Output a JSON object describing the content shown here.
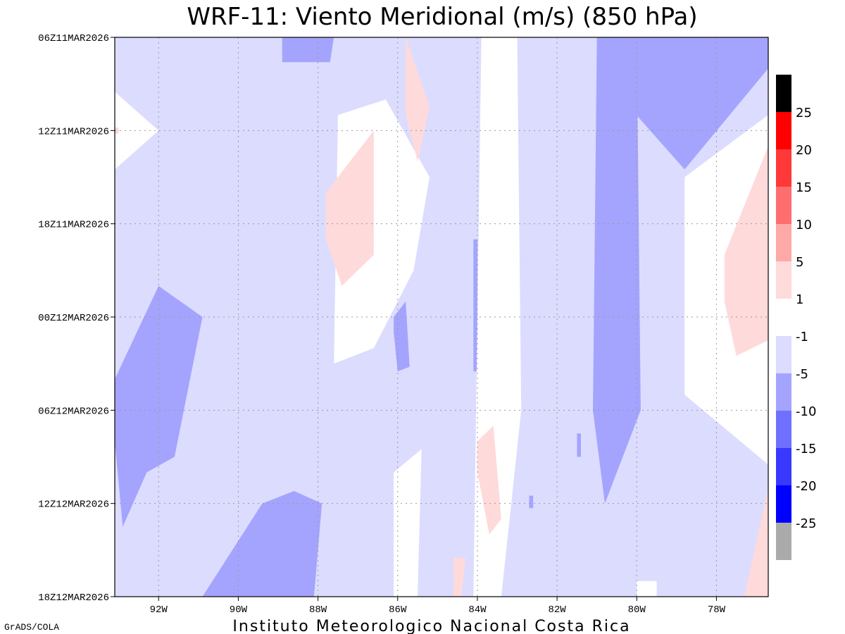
{
  "chart_data": {
    "type": "heatmap",
    "title": "WRF-11: Viento Meridional (m/s) (850 hPa)",
    "xlabel": "",
    "ylabel": "",
    "x_ticks": [
      "92W",
      "90W",
      "88W",
      "86W",
      "84W",
      "82W",
      "80W",
      "78W"
    ],
    "x_tick_values": [
      -92,
      -90,
      -88,
      -86,
      -84,
      -82,
      -80,
      -78
    ],
    "xlim": [
      -93.1,
      -76.7
    ],
    "y_ticks": [
      "06Z11MAR2026",
      "12Z11MAR2026",
      "18Z11MAR2026",
      "00Z12MAR2026",
      "06Z12MAR2026",
      "12Z12MAR2026",
      "18Z12MAR2026"
    ],
    "y_tick_hours": [
      0,
      6,
      12,
      18,
      24,
      30,
      36
    ],
    "grid": true,
    "background_class": "-5 to -1",
    "colorbar": {
      "position": "right",
      "upper_labels": [
        "25",
        "20",
        "15",
        "10",
        "5",
        "1"
      ],
      "lower_labels": [
        "-1",
        "-5",
        "-10",
        "-15",
        "-20",
        "-25"
      ],
      "upper_colors": [
        "#000000",
        "#ff0000",
        "#ff3838",
        "#ff6e6e",
        "#ffa8a8",
        "#ffdada"
      ],
      "lower_colors": [
        "#dcdcff",
        "#a4a4ff",
        "#7070ff",
        "#3838ff",
        "#0000ff",
        "#aaaaaa"
      ]
    },
    "class_colors": {
      "pos_1_5": "#ffdada",
      "near_zero": "#ffffff",
      "neg_1_5": "#dcdcff",
      "neg_5_10": "#a4a4ff",
      "neg_10_15": "#7070ff"
    },
    "regions": [
      {
        "level": "neg_5_10",
        "lon": [
          -88.9,
          -87.6,
          -87.7,
          -88.9
        ],
        "hour": [
          0,
          0,
          1.6,
          1.6
        ]
      },
      {
        "level": "neg_5_10",
        "lon": [
          -80.7,
          -76.7,
          -76.7,
          -78.8,
          -80.7
        ],
        "hour": [
          0,
          0,
          2,
          8.5,
          3
        ]
      },
      {
        "level": "neg_5_10",
        "lon": [
          -81.0,
          -80.0,
          -79.9,
          -80.8,
          -81.1
        ],
        "hour": [
          0,
          0,
          24,
          30,
          24
        ]
      },
      {
        "level": "neg_5_10",
        "lon": [
          -93.1,
          -92.0,
          -90.9,
          -91.6,
          -92.3,
          -92.9,
          -93.1
        ],
        "hour": [
          22,
          16,
          18,
          27,
          28,
          31.5,
          26
        ]
      },
      {
        "level": "neg_5_10",
        "lon": [
          -88.1,
          -90.9,
          -89.4,
          -88.6,
          -87.9
        ],
        "hour": [
          36,
          36,
          30,
          29.2,
          30
        ]
      },
      {
        "level": "neg_5_10",
        "lon": [
          -86.1,
          -85.8,
          -85.7,
          -86.0,
          -86.1
        ],
        "hour": [
          18,
          17,
          21.2,
          21.5,
          19
        ]
      },
      {
        "level": "neg_5_10",
        "lon": [
          -84.1,
          -84.0,
          -84.0,
          -84.1
        ],
        "hour": [
          13,
          13,
          21.5,
          21.5
        ]
      },
      {
        "level": "neg_5_10",
        "lon": [
          -81.5,
          -81.4,
          -81.4,
          -81.5
        ],
        "hour": [
          25.5,
          25.5,
          27,
          27
        ]
      },
      {
        "level": "neg_5_10",
        "lon": [
          -82.7,
          -82.6,
          -82.6,
          -82.7
        ],
        "hour": [
          29.5,
          29.5,
          30.3,
          30.3
        ]
      },
      {
        "level": "near_zero",
        "lon": [
          -93.1,
          -92.0,
          -93.1
        ],
        "hour": [
          3.5,
          6,
          8.5
        ]
      },
      {
        "level": "near_zero",
        "lon": [
          -87.5,
          -86.3,
          -85.2,
          -85.6,
          -86.6,
          -87.6
        ],
        "hour": [
          5,
          4,
          9,
          15,
          20,
          21
        ]
      },
      {
        "level": "near_zero",
        "lon": [
          -83.9,
          -83.0,
          -82.9,
          -83.4,
          -84.1
        ],
        "hour": [
          0,
          0,
          24,
          36,
          36
        ]
      },
      {
        "level": "near_zero",
        "lon": [
          -76.7,
          -78.8,
          -78.8,
          -76.7
        ],
        "hour": [
          5,
          9,
          23,
          27.5
        ]
      },
      {
        "level": "near_zero",
        "lon": [
          -86.1,
          -85.4,
          -85.5,
          -86.1
        ],
        "hour": [
          28,
          26.5,
          36,
          36
        ]
      },
      {
        "level": "near_zero",
        "lon": [
          -80.0,
          -79.5,
          -79.5,
          -80.0
        ],
        "hour": [
          35,
          35,
          36,
          36
        ]
      },
      {
        "level": "pos_1_5",
        "lon": [
          -87.8,
          -86.6,
          -86.6,
          -87.4,
          -87.8
        ],
        "hour": [
          10,
          6,
          14,
          16,
          13
        ]
      },
      {
        "level": "pos_1_5",
        "lon": [
          -85.8,
          -85.2,
          -85.5,
          -85.8
        ],
        "hour": [
          0,
          4.5,
          8,
          5
        ]
      },
      {
        "level": "pos_1_5",
        "lon": [
          -77.8,
          -76.7,
          -76.7,
          -77.5,
          -77.8
        ],
        "hour": [
          14,
          7,
          19.5,
          20.5,
          17
        ]
      },
      {
        "level": "pos_1_5",
        "lon": [
          -77.3,
          -76.7,
          -76.7,
          -77.3
        ],
        "hour": [
          36,
          29,
          36,
          36
        ]
      },
      {
        "level": "pos_1_5",
        "lon": [
          -84.0,
          -83.6,
          -83.4,
          -83.7,
          -84.0
        ],
        "hour": [
          26,
          25,
          31,
          32,
          28
        ]
      },
      {
        "level": "pos_1_5",
        "lon": [
          -84.6,
          -84.3,
          -84.4,
          -84.6
        ],
        "hour": [
          33.5,
          33.5,
          36,
          36
        ]
      },
      {
        "level": "pos_1_5",
        "lon": [
          -93.1,
          -93.0,
          -93.0,
          -93.1
        ],
        "hour": [
          5.8,
          5.8,
          6.2,
          6.2
        ]
      }
    ]
  },
  "footer": {
    "institution": "Instituto Meteorologico Nacional Costa Rica",
    "credit": "GrADS/COLA"
  }
}
